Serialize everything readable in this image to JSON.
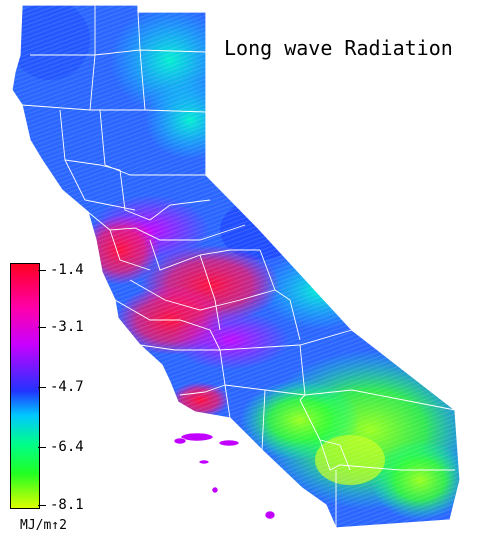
{
  "title": "Long wave Radiation",
  "colorbar": {
    "ticks": [
      "-1.4",
      "-3.1",
      "-4.7",
      "-6.4",
      "-8.1"
    ],
    "units": "MJ/m↑2",
    "stops": [
      "#ff0022",
      "#ff00aa",
      "#c800ff",
      "#2233ff",
      "#00c8ff",
      "#00ff88",
      "#22ff22",
      "#ddff00"
    ]
  }
}
